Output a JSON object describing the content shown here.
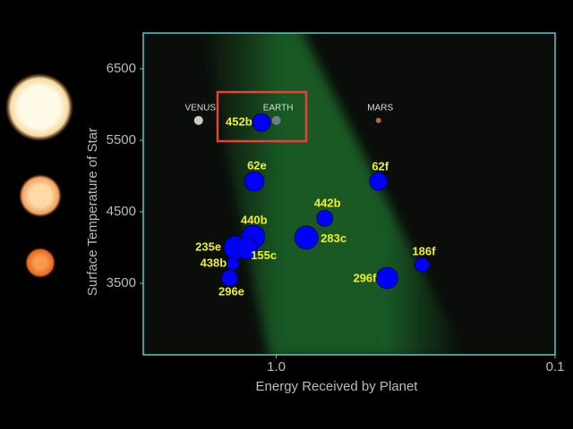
{
  "chart_data": {
    "type": "scatter",
    "xlabel": "Energy Received by Planet",
    "ylabel": "Surface Temperature of Star",
    "xscale": "log",
    "xlim": [
      3,
      0.1
    ],
    "xticks": [
      {
        "value": 1,
        "label": "1.0"
      },
      0.1
    ],
    "ylim": [
      2500,
      7000
    ],
    "yticks": [
      3500,
      4500,
      5500,
      6500
    ],
    "series": [
      {
        "color": "#0000ff",
        "labels": [
          "452b",
          "62e",
          "62f",
          "442b",
          "440b",
          "235e",
          "155c",
          "283c",
          "438b",
          "296e",
          "296f",
          "186f"
        ],
        "x": [
          1.13,
          1.2,
          0.43,
          0.67,
          1.21,
          1.4,
          1.28,
          0.78,
          1.43,
          1.47,
          0.4,
          0.3
        ],
        "values": [
          5750,
          4925,
          4925,
          4410,
          4150,
          4000,
          3990,
          4140,
          3775,
          3575,
          3575,
          3760
        ],
        "sizes": [
          10,
          11,
          10,
          9,
          13,
          13,
          12,
          13,
          7,
          9,
          12,
          8
        ]
      }
    ],
    "reference_planets": {
      "labels": [
        "VENUS",
        "EARTH",
        "MARS"
      ],
      "x": [
        1.9,
        1.0,
        0.43
      ],
      "values": [
        5778,
        5778,
        5778
      ]
    }
  }
}
